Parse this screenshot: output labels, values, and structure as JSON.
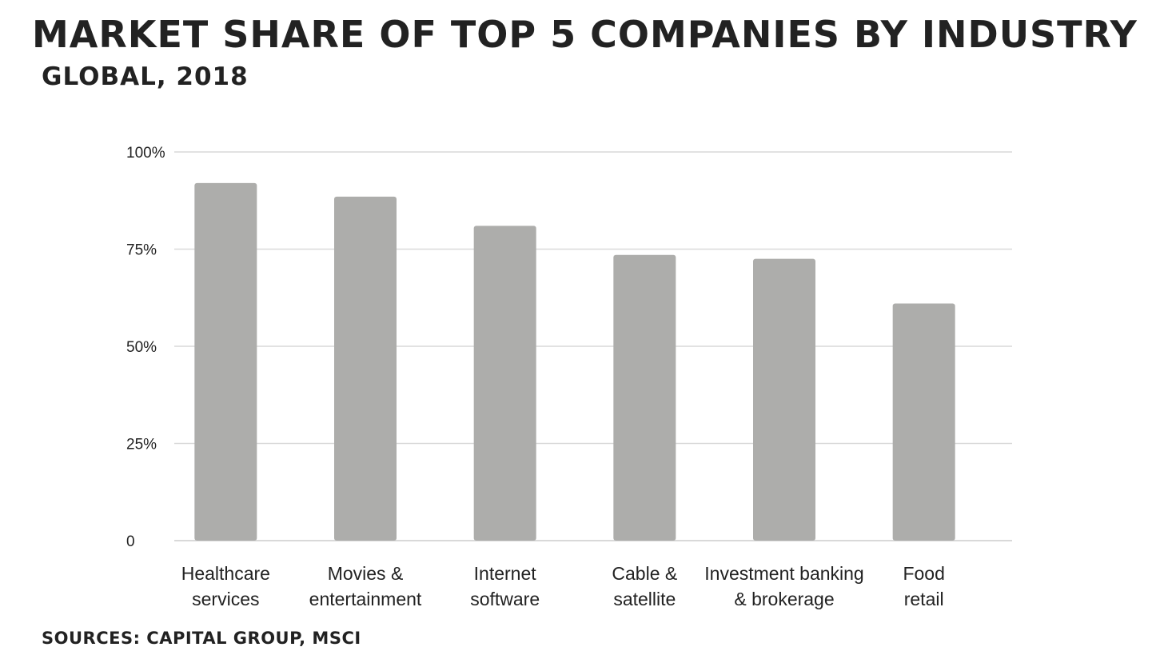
{
  "chart_data": {
    "type": "bar",
    "title": "MARKET SHARE OF TOP 5 COMPANIES BY INDUSTRY",
    "subtitle": "GLOBAL, 2018",
    "source": "SOURCES: CAPITAL GROUP, MSCI",
    "categories": [
      [
        "Healthcare",
        "services"
      ],
      [
        "Movies &",
        "entertainment"
      ],
      [
        "Internet",
        "software"
      ],
      [
        "Cable &",
        "satellite"
      ],
      [
        "Investment banking",
        "& brokerage"
      ],
      [
        "Food",
        "retail"
      ]
    ],
    "values": [
      92,
      88.5,
      81,
      73.5,
      72.5,
      61
    ],
    "ylim": [
      0,
      100
    ],
    "yticks": [
      0,
      25,
      50,
      75,
      100
    ],
    "ytick_labels": [
      "0",
      "25%",
      "50%",
      "75%",
      "100%"
    ],
    "xlabel": "",
    "ylabel": "",
    "grid": true,
    "legend": "none",
    "colors": {
      "bar": "#adadab",
      "grid": "#d9d9d9",
      "text": "#222222"
    }
  }
}
